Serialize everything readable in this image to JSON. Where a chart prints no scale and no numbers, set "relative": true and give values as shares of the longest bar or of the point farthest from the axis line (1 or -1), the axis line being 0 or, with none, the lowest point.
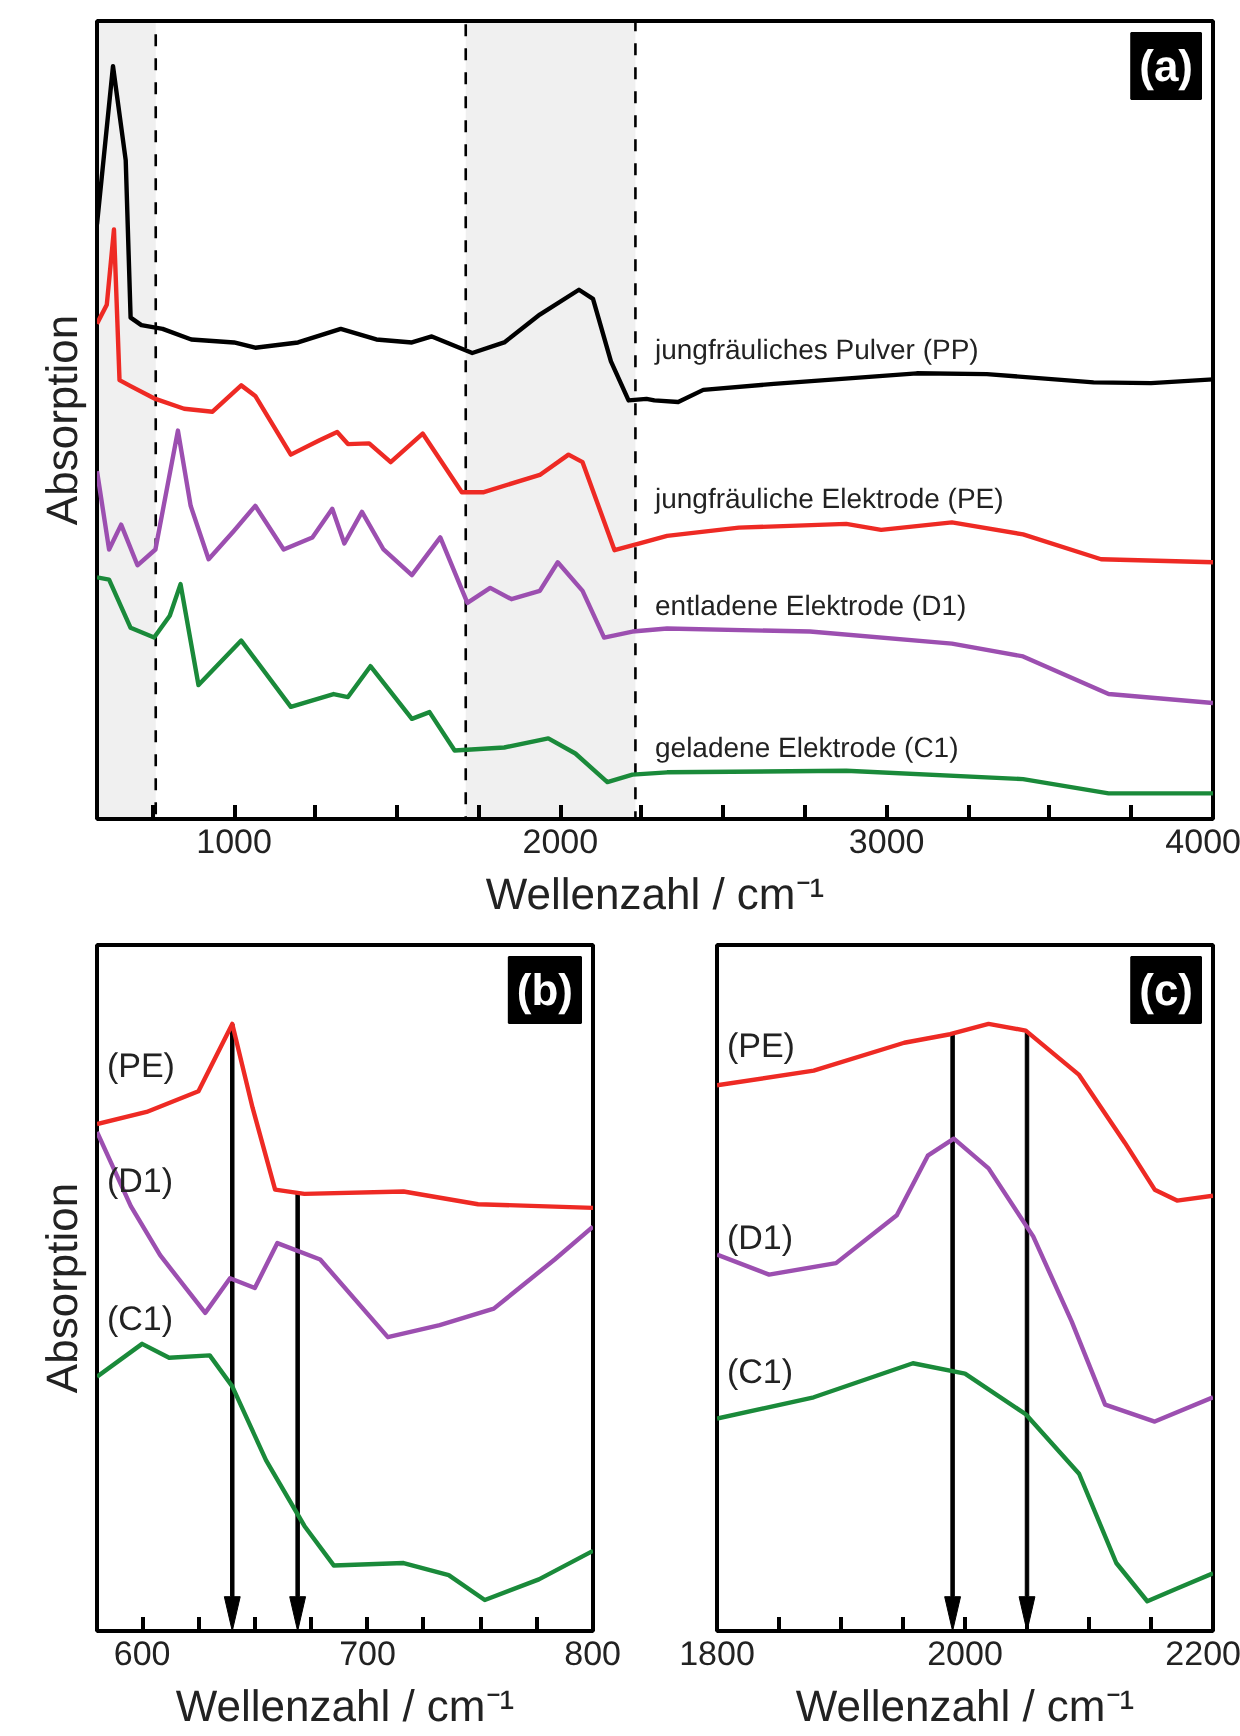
{
  "chart_data": [
    {
      "type": "line",
      "relative": true,
      "xlabel": "Wellenzahl / cm⁻¹",
      "ylabel": "Absorption",
      "xlim": [
        580,
        4000
      ],
      "xticks": [
        {
          "value": 750,
          "label": null
        },
        1000,
        {
          "value": 1250,
          "label": null
        },
        {
          "value": 1500,
          "label": null
        },
        {
          "value": 1750,
          "label": null
        },
        2000,
        {
          "value": 2250,
          "label": null
        },
        {
          "value": 2500,
          "label": null
        },
        {
          "value": 2750,
          "label": null
        },
        3000,
        {
          "value": 3250,
          "label": null
        },
        {
          "value": 3500,
          "label": null
        },
        {
          "value": 3750,
          "label": null
        },
        4000
      ],
      "annotations": [
        "(a)"
      ],
      "bands": [
        {
          "axis": "x",
          "from": 580,
          "to": 760,
          "color": "#000000"
        },
        {
          "axis": "x",
          "from": 1710,
          "to": 2230,
          "color": "#000000"
        }
      ],
      "series": [
        {
          "name": "jungfräuliches Pulver (PP)",
          "color": "#000000",
          "x": [
            580,
            629,
            668,
            683,
            716,
            781,
            869,
            1000,
            1065,
            1196,
            1327,
            1436,
            1545,
            1606,
            1730,
            1828,
            1937,
            2057,
            2100,
            2155,
            2209,
            2264,
            2288,
            2361,
            2438,
            2654,
            3092,
            3307,
            3634,
            3810,
            4000
          ],
          "values": [
            0.79,
            1.0,
            0.875,
            0.666,
            0.656,
            0.651,
            0.637,
            0.633,
            0.626,
            0.633,
            0.651,
            0.637,
            0.633,
            0.641,
            0.619,
            0.633,
            0.67,
            0.703,
            0.691,
            0.608,
            0.556,
            0.558,
            0.556,
            0.554,
            0.57,
            0.578,
            0.592,
            0.591,
            0.58,
            0.579,
            0.584
          ]
        },
        {
          "name": "jungfräuliche Elektrode (PE)",
          "color": "#ee2a24",
          "x": [
            580,
            610,
            632,
            649,
            683,
            759,
            847,
            934,
            1022,
            1065,
            1174,
            1262,
            1316,
            1349,
            1414,
            1480,
            1578,
            1698,
            1763,
            1937,
            2025,
            2068,
            2166,
            2243,
            2327,
            2547,
            2876,
            2983,
            3200,
            3418,
            3657,
            4000
          ],
          "values": [
            0.658,
            0.683,
            0.783,
            0.583,
            0.575,
            0.558,
            0.545,
            0.541,
            0.576,
            0.562,
            0.484,
            0.503,
            0.514,
            0.498,
            0.499,
            0.474,
            0.512,
            0.434,
            0.434,
            0.457,
            0.484,
            0.474,
            0.357,
            0.366,
            0.376,
            0.387,
            0.392,
            0.384,
            0.394,
            0.378,
            0.345,
            0.341
          ]
        },
        {
          "name": "entladene Elektrode (D1)",
          "color": "#9c4fb0",
          "x": [
            580,
            617,
            654,
            704,
            759,
            828,
            867,
            922,
            1000,
            1065,
            1152,
            1240,
            1301,
            1338,
            1392,
            1458,
            1545,
            1632,
            1715,
            1785,
            1850,
            1937,
            1992,
            2068,
            2134,
            2221,
            2327,
            2765,
            3200,
            3418,
            3680,
            4000
          ],
          "values": [
            0.462,
            0.358,
            0.391,
            0.337,
            0.358,
            0.516,
            0.416,
            0.345,
            0.383,
            0.416,
            0.358,
            0.374,
            0.412,
            0.366,
            0.408,
            0.358,
            0.324,
            0.374,
            0.287,
            0.307,
            0.292,
            0.303,
            0.341,
            0.303,
            0.241,
            0.249,
            0.253,
            0.249,
            0.233,
            0.216,
            0.166,
            0.154
          ]
        },
        {
          "name": "geladene Elektrode (C1)",
          "color": "#1a8a3a",
          "x": [
            580,
            617,
            683,
            755,
            803,
            836,
            891,
            1022,
            1174,
            1305,
            1349,
            1418,
            1545,
            1599,
            1676,
            1828,
            1963,
            2046,
            2144,
            2221,
            2327,
            2876,
            3418,
            3680,
            4000
          ],
          "values": [
            0.321,
            0.318,
            0.254,
            0.241,
            0.27,
            0.312,
            0.178,
            0.237,
            0.149,
            0.166,
            0.162,
            0.203,
            0.133,
            0.142,
            0.091,
            0.095,
            0.107,
            0.087,
            0.049,
            0.059,
            0.062,
            0.064,
            0.053,
            0.034,
            0.034
          ]
        }
      ]
    },
    {
      "type": "line",
      "relative": true,
      "xlabel": "Wellenzahl / cm⁻¹",
      "ylabel": "Absorption",
      "xlim": [
        580,
        800
      ],
      "xticks": [
        600,
        {
          "value": 625,
          "label": null
        },
        {
          "value": 650,
          "label": null
        },
        {
          "value": 675,
          "label": null
        },
        700,
        {
          "value": 725,
          "label": null
        },
        {
          "value": 750,
          "label": null
        },
        {
          "value": 775,
          "label": null
        },
        800
      ],
      "annotations": [
        "(b)"
      ],
      "ref_lines": [
        {
          "axis": "x",
          "value": 640
        },
        {
          "axis": "x",
          "value": 669
        }
      ],
      "series": [
        {
          "name": "(PE)",
          "color": "#ee2a24",
          "x": [
            580,
            602,
            625,
            640,
            649,
            659,
            672,
            716,
            749,
            800
          ],
          "values": [
            0.835,
            0.855,
            0.889,
            1.0,
            0.862,
            0.727,
            0.72,
            0.724,
            0.703,
            0.697
          ]
        },
        {
          "name": "(D1)",
          "color": "#9c4fb0",
          "x": [
            580,
            595,
            608,
            628,
            639,
            650,
            660,
            679,
            709,
            732,
            756,
            783,
            800
          ],
          "values": [
            0.822,
            0.7,
            0.619,
            0.524,
            0.581,
            0.565,
            0.639,
            0.612,
            0.484,
            0.504,
            0.531,
            0.612,
            0.666
          ]
        },
        {
          "name": "(C1)",
          "color": "#1a8a3a",
          "x": [
            580,
            600,
            612,
            630,
            640,
            655,
            672,
            685,
            716,
            736,
            752,
            776,
            800
          ],
          "values": [
            0.419,
            0.473,
            0.45,
            0.454,
            0.403,
            0.281,
            0.173,
            0.108,
            0.112,
            0.092,
            0.051,
            0.085,
            0.132
          ]
        }
      ]
    },
    {
      "type": "line",
      "relative": true,
      "xlabel": "Wellenzahl / cm⁻¹",
      "xlim": [
        1800,
        2200
      ],
      "xticks": [
        1800,
        {
          "value": 1850,
          "label": null
        },
        {
          "value": 1900,
          "label": null
        },
        {
          "value": 1950,
          "label": null
        },
        2000,
        {
          "value": 2050,
          "label": null
        },
        {
          "value": 2100,
          "label": null
        },
        {
          "value": 2150,
          "label": null
        },
        2200
      ],
      "annotations": [
        "(c)"
      ],
      "ref_lines": [
        {
          "axis": "x",
          "value": 1990
        },
        {
          "axis": "x",
          "value": 2050
        }
      ],
      "series": [
        {
          "name": "(PE)",
          "color": "#ee2a24",
          "x": [
            1800,
            1878,
            1951,
            1988,
            2019,
            2049,
            2092,
            2129,
            2153,
            2171,
            2200
          ],
          "values": [
            0.899,
            0.923,
            0.969,
            0.983,
            1.0,
            0.989,
            0.916,
            0.804,
            0.727,
            0.709,
            0.717
          ]
        },
        {
          "name": "(D1)",
          "color": "#9c4fb0",
          "x": [
            1800,
            1842,
            1896,
            1945,
            1970,
            1991,
            2019,
            2055,
            2086,
            2113,
            2153,
            2200
          ],
          "values": [
            0.62,
            0.587,
            0.606,
            0.685,
            0.783,
            0.811,
            0.762,
            0.65,
            0.51,
            0.373,
            0.345,
            0.385
          ]
        },
        {
          "name": "(C1)",
          "color": "#1a8a3a",
          "x": [
            1800,
            1878,
            1958,
            2000,
            2049,
            2092,
            2122,
            2147,
            2171,
            2200
          ],
          "values": [
            0.35,
            0.385,
            0.441,
            0.424,
            0.357,
            0.259,
            0.112,
            0.049,
            0.07,
            0.095
          ]
        }
      ]
    }
  ]
}
